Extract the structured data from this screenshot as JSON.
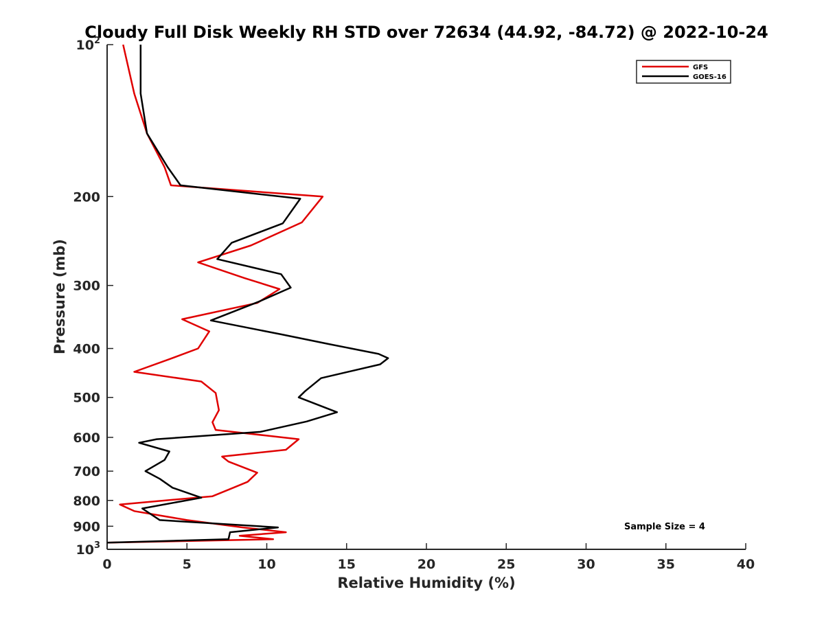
{
  "chart_data": {
    "type": "line",
    "title": "Cloudy Full Disk Weekly RH STD over 72634 (44.92, -84.72) @ 2022-10-24",
    "xlabel": "Relative Humidity (%)",
    "ylabel": "Pressure (mb)",
    "xlim": [
      0,
      40
    ],
    "ylim": [
      100,
      1000
    ],
    "yscale": "log",
    "y_reversed": true,
    "grid": false,
    "legend_position": "top-right",
    "annotation": "Sample Size = 4",
    "xticks": [
      0,
      5,
      10,
      15,
      20,
      25,
      30,
      35,
      40
    ],
    "xtick_labels": [
      "0",
      "5",
      "10",
      "15",
      "20",
      "25",
      "30",
      "35",
      "40"
    ],
    "yticks": [
      100,
      200,
      300,
      400,
      500,
      600,
      700,
      800,
      900,
      1000
    ],
    "ytick_labels": [
      {
        "base": "10",
        "exp": "2"
      },
      {
        "base": "200",
        "exp": ""
      },
      {
        "base": "300",
        "exp": ""
      },
      {
        "base": "400",
        "exp": ""
      },
      {
        "base": "500",
        "exp": ""
      },
      {
        "base": "600",
        "exp": ""
      },
      {
        "base": "700",
        "exp": ""
      },
      {
        "base": "800",
        "exp": ""
      },
      {
        "base": "900",
        "exp": ""
      },
      {
        "base": "10",
        "exp": "3"
      }
    ],
    "series": [
      {
        "name": "GFS",
        "color": "#e00000",
        "points": [
          [
            1.0,
            100
          ],
          [
            1.7,
            125
          ],
          [
            2.5,
            150
          ],
          [
            3.6,
            175
          ],
          [
            4.0,
            190
          ],
          [
            13.5,
            200
          ],
          [
            12.2,
            225
          ],
          [
            9.0,
            250
          ],
          [
            5.7,
            270
          ],
          [
            8.6,
            290
          ],
          [
            10.8,
            305
          ],
          [
            9.4,
            325
          ],
          [
            4.7,
            350
          ],
          [
            6.4,
            370
          ],
          [
            5.7,
            400
          ],
          [
            3.9,
            420
          ],
          [
            1.7,
            445
          ],
          [
            5.9,
            465
          ],
          [
            6.8,
            490
          ],
          [
            7.0,
            530
          ],
          [
            6.6,
            560
          ],
          [
            6.8,
            580
          ],
          [
            12.0,
            605
          ],
          [
            11.2,
            635
          ],
          [
            7.2,
            655
          ],
          [
            7.6,
            670
          ],
          [
            9.4,
            705
          ],
          [
            8.8,
            735
          ],
          [
            7.9,
            755
          ],
          [
            6.6,
            785
          ],
          [
            0.8,
            815
          ],
          [
            1.7,
            840
          ],
          [
            5.0,
            875
          ],
          [
            8.5,
            905
          ],
          [
            11.2,
            925
          ],
          [
            8.3,
            940
          ],
          [
            10.4,
            955
          ],
          [
            0.0,
            970
          ]
        ]
      },
      {
        "name": "GOES-16",
        "color": "#000000",
        "points": [
          [
            2.1,
            100
          ],
          [
            2.1,
            125
          ],
          [
            2.5,
            150
          ],
          [
            3.8,
            175
          ],
          [
            4.6,
            190
          ],
          [
            12.1,
            202
          ],
          [
            11.0,
            226
          ],
          [
            7.8,
            247
          ],
          [
            6.9,
            266
          ],
          [
            10.9,
            285
          ],
          [
            11.5,
            303
          ],
          [
            9.5,
            323
          ],
          [
            6.5,
            352
          ],
          [
            10.9,
            375
          ],
          [
            13.9,
            392
          ],
          [
            17.0,
            410
          ],
          [
            17.6,
            418
          ],
          [
            17.1,
            430
          ],
          [
            13.4,
            458
          ],
          [
            12.4,
            486
          ],
          [
            12.0,
            500
          ],
          [
            14.4,
            535
          ],
          [
            12.5,
            558
          ],
          [
            9.6,
            585
          ],
          [
            3.1,
            605
          ],
          [
            2.0,
            615
          ],
          [
            3.9,
            640
          ],
          [
            3.6,
            665
          ],
          [
            2.4,
            700
          ],
          [
            3.3,
            725
          ],
          [
            4.1,
            755
          ],
          [
            5.9,
            790
          ],
          [
            2.2,
            830
          ],
          [
            3.3,
            875
          ],
          [
            10.7,
            905
          ],
          [
            7.7,
            925
          ],
          [
            7.6,
            955
          ],
          [
            0.0,
            970
          ]
        ]
      }
    ]
  }
}
